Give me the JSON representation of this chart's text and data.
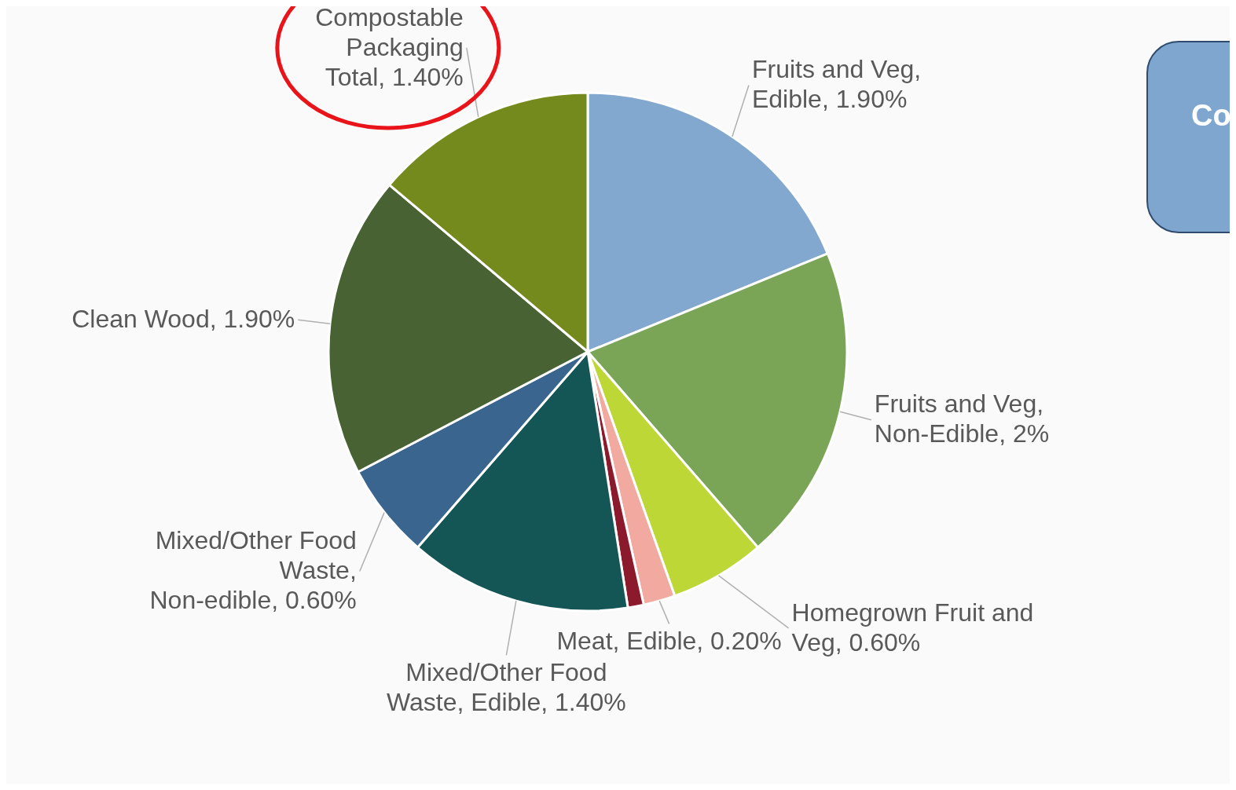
{
  "chart_data": {
    "type": "pie",
    "categories": [
      "Fruits and Veg, Edible",
      "Fruits and Veg, Non-Edible",
      "Homegrown Fruit and Veg",
      "Meat, Edible",
      null,
      "Mixed/Other Food Waste, Edible",
      "Mixed/Other Food Waste, Non-edible",
      "Clean Wood",
      "Compostable Packaging Total"
    ],
    "values": [
      1.9,
      2,
      0.6,
      0.2,
      0.1,
      1.4,
      0.6,
      1.9,
      1.4
    ],
    "value_labels": [
      "1.90%",
      "2%",
      "0.60%",
      "0.20%",
      null,
      "1.40%",
      "0.60%",
      "1.90%",
      "1.40%"
    ],
    "colors": [
      "#82a8d0",
      "#7aa557",
      "#bdd736",
      "#f2aaa0",
      "#8b1a2c",
      "#145656",
      "#39658f",
      "#486233",
      "#758a1d"
    ],
    "annotations": [
      "Co"
    ]
  }
}
